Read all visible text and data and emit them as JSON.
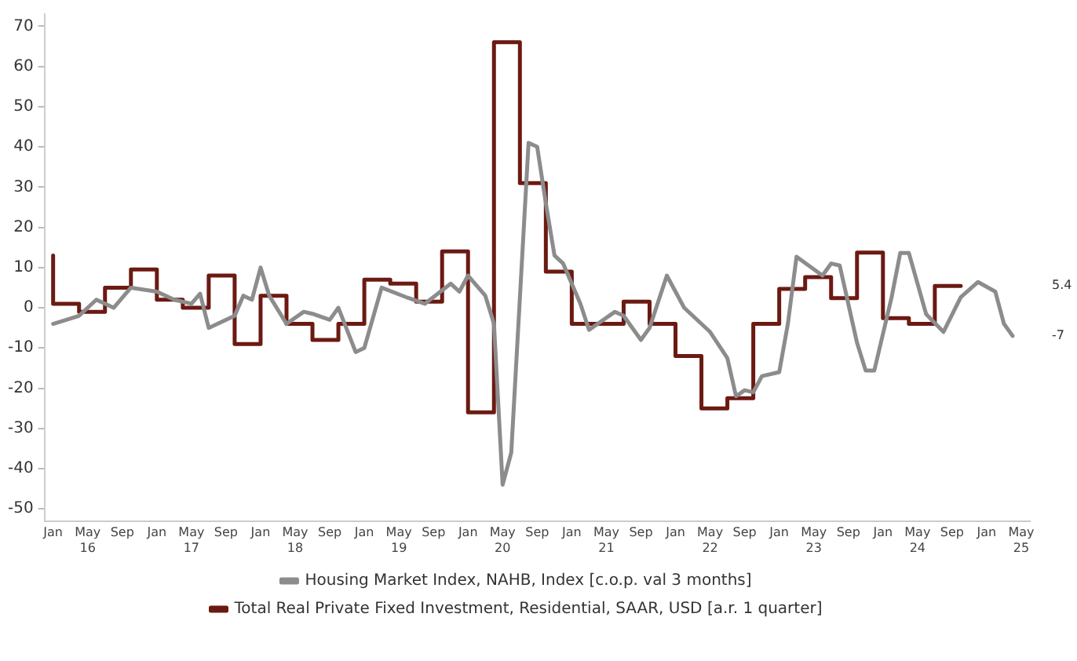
{
  "chart_data": {
    "type": "line",
    "x": [
      "2016-01",
      "2016-04",
      "2016-06",
      "2016-08",
      "2016-10",
      "2017-01",
      "2017-03",
      "2017-05",
      "2017-06",
      "2017-07",
      "2017-10",
      "2017-11",
      "2017-12",
      "2018-01",
      "2018-02",
      "2018-04",
      "2018-06",
      "2018-07",
      "2018-09",
      "2018-10",
      "2018-12",
      "2019-01",
      "2019-03",
      "2019-06",
      "2019-08",
      "2019-11",
      "2019-12",
      "2020-01",
      "2020-03",
      "2020-04",
      "2020-05",
      "2020-06",
      "2020-08",
      "2020-09",
      "2020-10",
      "2020-11",
      "2020-12",
      "2021-02",
      "2021-03",
      "2021-04",
      "2021-06",
      "2021-07",
      "2021-09",
      "2021-10",
      "2021-12",
      "2022-02",
      "2022-05",
      "2022-07",
      "2022-08",
      "2022-09",
      "2022-10",
      "2022-11",
      "2023-01",
      "2023-02",
      "2023-03",
      "2023-06",
      "2023-07",
      "2023-08",
      "2023-10",
      "2023-11",
      "2023-12",
      "2024-02",
      "2024-03",
      "2024-04",
      "2024-06",
      "2024-08",
      "2024-10",
      "2024-12",
      "2025-02",
      "2025-03",
      "2025-04"
    ],
    "series": [
      {
        "name": "Housing Market Index, NAHB, Index [c.o.p. val 3 months]",
        "color": "#8c8c8c",
        "values": [
          -4,
          -2,
          2,
          0,
          5,
          4,
          2,
          1,
          3.5,
          -5,
          -2,
          3,
          2,
          10,
          3,
          -4,
          -1,
          -1.5,
          -3,
          0,
          -11,
          -10,
          5,
          2.5,
          1,
          6,
          4,
          8,
          3,
          -4,
          -44,
          -36,
          41,
          40,
          26,
          13,
          11,
          1,
          -5.5,
          -4,
          -1,
          -2,
          -8,
          -5,
          8,
          0,
          -6,
          -12.5,
          -22,
          -20.5,
          -21,
          -17,
          -16,
          -4,
          12.7,
          8,
          11,
          10.5,
          -8.7,
          -15.6,
          -15.6,
          2.6,
          13.6,
          13.6,
          -1.6,
          -6,
          2.6,
          6.4,
          4,
          -4,
          -7
        ]
      },
      {
        "name": "Total Real Private Fixed Investment, Residential, SAAR, USD [a.r. 1 quarter]",
        "color": "#6b1a12",
        "type": "step",
        "x": [
          "2016-01",
          "2016-04",
          "2016-07",
          "2016-10",
          "2017-01",
          "2017-04",
          "2017-07",
          "2017-10",
          "2018-01",
          "2018-04",
          "2018-07",
          "2018-10",
          "2019-01",
          "2019-04",
          "2019-07",
          "2019-10",
          "2020-01",
          "2020-04",
          "2020-07",
          "2020-10",
          "2021-01",
          "2021-04",
          "2021-07",
          "2021-10",
          "2022-01",
          "2022-04",
          "2022-07",
          "2022-10",
          "2023-01",
          "2023-04",
          "2023-07",
          "2023-10",
          "2024-01",
          "2024-04",
          "2024-07",
          "2024-10"
        ],
        "values": [
          13,
          1,
          -1,
          5,
          9.5,
          2,
          0,
          8,
          -9,
          3,
          -4,
          -8,
          -4,
          7,
          6,
          1.5,
          14,
          -26,
          66,
          31,
          9,
          -4,
          -4,
          1.5,
          -4,
          -12,
          -25,
          -22.5,
          -4,
          4.7,
          7.6,
          2.4,
          13.7,
          -2.6,
          -4,
          5.4
        ]
      }
    ],
    "xlim": [
      "2015-12",
      "2025-06"
    ],
    "xticks": [
      {
        "value": "2016-01",
        "label": "Jan"
      },
      {
        "value": "2016-05",
        "label": "May\n16"
      },
      {
        "value": "2016-09",
        "label": "Sep"
      },
      {
        "value": "2017-01",
        "label": "Jan"
      },
      {
        "value": "2017-05",
        "label": "May\n17"
      },
      {
        "value": "2017-09",
        "label": "Sep"
      },
      {
        "value": "2018-01",
        "label": "Jan"
      },
      {
        "value": "2018-05",
        "label": "May\n18"
      },
      {
        "value": "2018-09",
        "label": "Sep"
      },
      {
        "value": "2019-01",
        "label": "Jan"
      },
      {
        "value": "2019-05",
        "label": "May\n19"
      },
      {
        "value": "2019-09",
        "label": "Sep"
      },
      {
        "value": "2020-01",
        "label": "Jan"
      },
      {
        "value": "2020-05",
        "label": "May\n20"
      },
      {
        "value": "2020-09",
        "label": "Sep"
      },
      {
        "value": "2021-01",
        "label": "Jan"
      },
      {
        "value": "2021-05",
        "label": "May\n21"
      },
      {
        "value": "2021-09",
        "label": "Sep"
      },
      {
        "value": "2022-01",
        "label": "Jan"
      },
      {
        "value": "2022-05",
        "label": "May\n22"
      },
      {
        "value": "2022-09",
        "label": "Sep"
      },
      {
        "value": "2023-01",
        "label": "Jan"
      },
      {
        "value": "2023-05",
        "label": "May\n23"
      },
      {
        "value": "2023-09",
        "label": "Sep"
      },
      {
        "value": "2024-01",
        "label": "Jan"
      },
      {
        "value": "2024-05",
        "label": "May\n24"
      },
      {
        "value": "2024-09",
        "label": "Sep"
      },
      {
        "value": "2025-01",
        "label": "Jan"
      },
      {
        "value": "2025-05",
        "label": "May\n25"
      }
    ],
    "ylim": [
      -53,
      73
    ],
    "yticks": [
      -50,
      -40,
      -30,
      -20,
      -10,
      0,
      10,
      20,
      30,
      40,
      50,
      60,
      70
    ],
    "annotations": [
      "5.4",
      "-7"
    ],
    "grid": false,
    "legend": "bottom",
    "marker": "none",
    "line_style": "solid"
  }
}
